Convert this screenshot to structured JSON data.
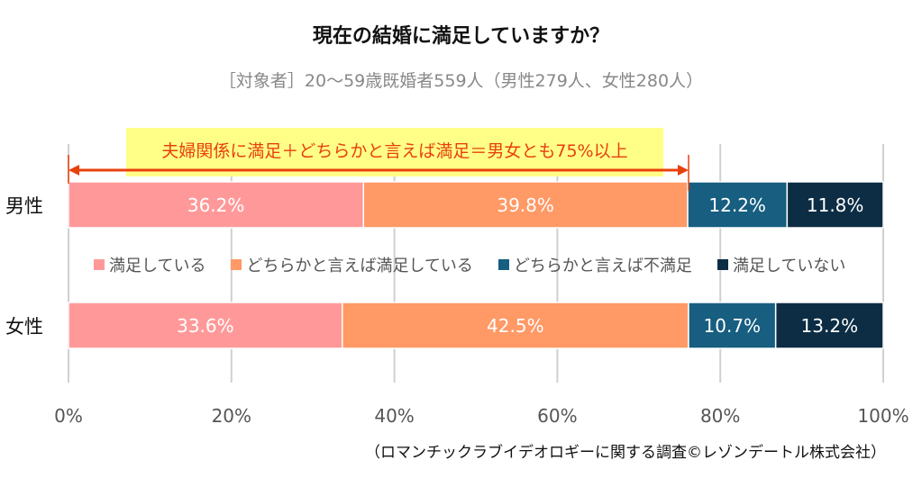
{
  "title": "現在の結婚に満足していますか？",
  "subtitle": "［対象者］20～59歳既婚者559人（男性279人、女性280人）",
  "annotation": "夫婦関係に満足＋どちらかと言えば満足＝男女とも75%以上",
  "source": "（ロマンチックラブイデオロギーに関する調査©レゾンデートル株式会社）",
  "chart_data": {
    "type": "bar",
    "orientation": "horizontal-stacked-100",
    "categories": [
      "男性",
      "女性"
    ],
    "series": [
      {
        "name": "満足している",
        "color": "#FF9999",
        "values": [
          36.2,
          33.6
        ],
        "labels": [
          "36.2%",
          "33.6%"
        ]
      },
      {
        "name": "どちらかと言えば満足している",
        "color": "#FF9966",
        "values": [
          39.8,
          42.5
        ],
        "labels": [
          "39.8%",
          "42.5%"
        ]
      },
      {
        "name": "どちらかと言えば不満足",
        "color": "#175E80",
        "values": [
          12.2,
          10.7
        ],
        "labels": [
          "12.2%",
          "10.7%"
        ]
      },
      {
        "name": "満足していない",
        "color": "#0C2D44",
        "values": [
          11.8,
          13.2
        ],
        "labels": [
          "11.8%",
          "13.2%"
        ]
      }
    ],
    "xticks": [
      "0%",
      "20%",
      "40%",
      "60%",
      "80%",
      "100%"
    ],
    "xlim": [
      0,
      100
    ],
    "grid": true,
    "legend_placement": "between-bars"
  }
}
